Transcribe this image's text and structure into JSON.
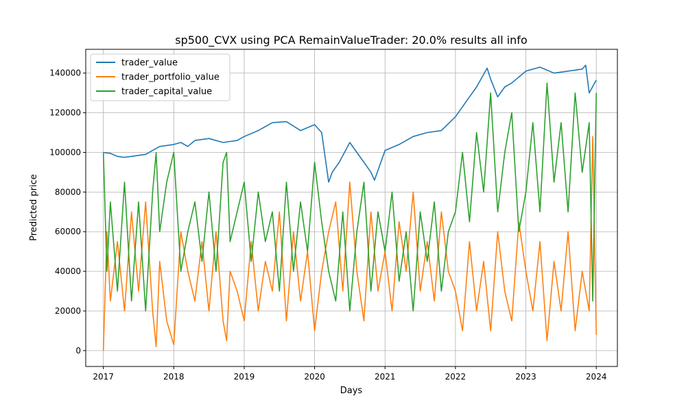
{
  "chart_data": {
    "type": "line",
    "title": "sp500_CVX using PCA RemainValueTrader: 20.0% results all info",
    "xlabel": "Days",
    "ylabel": "Predicted price",
    "xlim": [
      2016.75,
      2024.3
    ],
    "ylim": [
      -8000,
      152000
    ],
    "x_ticks": [
      {
        "value": 2017,
        "label": "2017"
      },
      {
        "value": 2018,
        "label": "2018"
      },
      {
        "value": 2019,
        "label": "2019"
      },
      {
        "value": 2020,
        "label": "2020"
      },
      {
        "value": 2021,
        "label": "2021"
      },
      {
        "value": 2022,
        "label": "2022"
      },
      {
        "value": 2023,
        "label": "2023"
      },
      {
        "value": 2024,
        "label": "2024"
      }
    ],
    "y_ticks": [
      {
        "value": 0,
        "label": "0"
      },
      {
        "value": 20000,
        "label": "20000"
      },
      {
        "value": 40000,
        "label": "40000"
      },
      {
        "value": 60000,
        "label": "60000"
      },
      {
        "value": 80000,
        "label": "80000"
      },
      {
        "value": 100000,
        "label": "100000"
      },
      {
        "value": 120000,
        "label": "120000"
      },
      {
        "value": 140000,
        "label": "140000"
      }
    ],
    "grid": true,
    "legend_position": "top-left",
    "series": [
      {
        "name": "trader_value",
        "color": "#1f77b4",
        "x": [
          2017.0,
          2017.1,
          2017.2,
          2017.3,
          2017.4,
          2017.5,
          2017.6,
          2017.7,
          2017.8,
          2018.0,
          2018.1,
          2018.2,
          2018.3,
          2018.5,
          2018.7,
          2018.9,
          2019.0,
          2019.2,
          2019.4,
          2019.6,
          2019.8,
          2020.0,
          2020.1,
          2020.2,
          2020.25,
          2020.35,
          2020.5,
          2020.6,
          2020.7,
          2020.8,
          2020.85,
          2021.0,
          2021.2,
          2021.4,
          2021.6,
          2021.8,
          2022.0,
          2022.2,
          2022.3,
          2022.45,
          2022.5,
          2022.6,
          2022.7,
          2022.8,
          2022.9,
          2023.0,
          2023.2,
          2023.4,
          2023.6,
          2023.8,
          2023.85,
          2023.9,
          2024.0
        ],
        "y": [
          100000,
          99500,
          98000,
          97500,
          98000,
          98500,
          99000,
          101000,
          103000,
          104000,
          105000,
          103000,
          106000,
          107000,
          105000,
          106000,
          108000,
          111000,
          115000,
          115500,
          111000,
          114000,
          110000,
          85000,
          90000,
          95000,
          105000,
          100000,
          95000,
          90000,
          86000,
          101000,
          104000,
          108000,
          110000,
          111000,
          118000,
          128000,
          133000,
          142500,
          137000,
          128000,
          133000,
          135000,
          138000,
          141000,
          143000,
          140000,
          141000,
          142000,
          144000,
          130000,
          136500
        ]
      },
      {
        "name": "trader_portfolio_value",
        "color": "#ff7f0e",
        "x": [
          2017.0,
          2017.05,
          2017.1,
          2017.2,
          2017.3,
          2017.4,
          2017.5,
          2017.6,
          2017.7,
          2017.75,
          2017.8,
          2017.9,
          2018.0,
          2018.1,
          2018.2,
          2018.3,
          2018.4,
          2018.5,
          2018.6,
          2018.7,
          2018.75,
          2018.8,
          2018.9,
          2019.0,
          2019.1,
          2019.2,
          2019.3,
          2019.4,
          2019.5,
          2019.6,
          2019.7,
          2019.8,
          2019.9,
          2020.0,
          2020.1,
          2020.2,
          2020.3,
          2020.4,
          2020.5,
          2020.6,
          2020.7,
          2020.8,
          2020.9,
          2021.0,
          2021.1,
          2021.2,
          2021.3,
          2021.4,
          2021.5,
          2021.6,
          2021.7,
          2021.8,
          2021.9,
          2022.0,
          2022.1,
          2022.2,
          2022.3,
          2022.4,
          2022.5,
          2022.6,
          2022.7,
          2022.8,
          2022.9,
          2023.0,
          2023.1,
          2023.2,
          2023.3,
          2023.4,
          2023.5,
          2023.6,
          2023.7,
          2023.8,
          2023.9,
          2023.95,
          2024.0
        ],
        "y": [
          0,
          60000,
          25000,
          55000,
          20000,
          70000,
          30000,
          75000,
          20000,
          2000,
          45000,
          15000,
          3000,
          60000,
          40000,
          25000,
          55000,
          20000,
          60000,
          15000,
          5000,
          40000,
          30000,
          15000,
          55000,
          20000,
          45000,
          30000,
          70000,
          15000,
          60000,
          25000,
          50000,
          10000,
          40000,
          60000,
          75000,
          30000,
          85000,
          40000,
          15000,
          70000,
          30000,
          50000,
          20000,
          65000,
          40000,
          80000,
          30000,
          55000,
          25000,
          70000,
          40000,
          30000,
          10000,
          55000,
          20000,
          45000,
          10000,
          60000,
          30000,
          15000,
          65000,
          40000,
          20000,
          55000,
          5000,
          45000,
          20000,
          60000,
          10000,
          40000,
          20000,
          108000,
          8000
        ]
      },
      {
        "name": "trader_capital_value",
        "color": "#2ca02c",
        "x": [
          2017.0,
          2017.05,
          2017.1,
          2017.2,
          2017.3,
          2017.4,
          2017.5,
          2017.6,
          2017.7,
          2017.75,
          2017.8,
          2017.9,
          2018.0,
          2018.1,
          2018.2,
          2018.3,
          2018.4,
          2018.5,
          2018.6,
          2018.7,
          2018.75,
          2018.8,
          2018.9,
          2019.0,
          2019.1,
          2019.2,
          2019.3,
          2019.4,
          2019.5,
          2019.6,
          2019.7,
          2019.8,
          2019.9,
          2020.0,
          2020.1,
          2020.2,
          2020.3,
          2020.4,
          2020.5,
          2020.6,
          2020.7,
          2020.8,
          2020.9,
          2021.0,
          2021.1,
          2021.2,
          2021.3,
          2021.4,
          2021.5,
          2021.6,
          2021.7,
          2021.8,
          2021.9,
          2022.0,
          2022.1,
          2022.2,
          2022.3,
          2022.4,
          2022.5,
          2022.6,
          2022.7,
          2022.8,
          2022.9,
          2023.0,
          2023.1,
          2023.2,
          2023.3,
          2023.4,
          2023.5,
          2023.6,
          2023.7,
          2023.8,
          2023.9,
          2023.95,
          2024.0
        ],
        "y": [
          100000,
          40000,
          75000,
          30000,
          85000,
          25000,
          75000,
          20000,
          80000,
          100000,
          60000,
          85000,
          100000,
          40000,
          60000,
          75000,
          45000,
          80000,
          40000,
          95000,
          100000,
          55000,
          70000,
          85000,
          45000,
          80000,
          55000,
          70000,
          30000,
          85000,
          40000,
          75000,
          50000,
          95000,
          65000,
          40000,
          25000,
          70000,
          20000,
          60000,
          85000,
          30000,
          70000,
          50000,
          80000,
          35000,
          60000,
          20000,
          70000,
          45000,
          75000,
          30000,
          60000,
          70000,
          100000,
          65000,
          110000,
          80000,
          130000,
          70000,
          100000,
          120000,
          60000,
          80000,
          115000,
          70000,
          135000,
          85000,
          115000,
          70000,
          130000,
          90000,
          115000,
          25000,
          130000
        ]
      }
    ]
  }
}
